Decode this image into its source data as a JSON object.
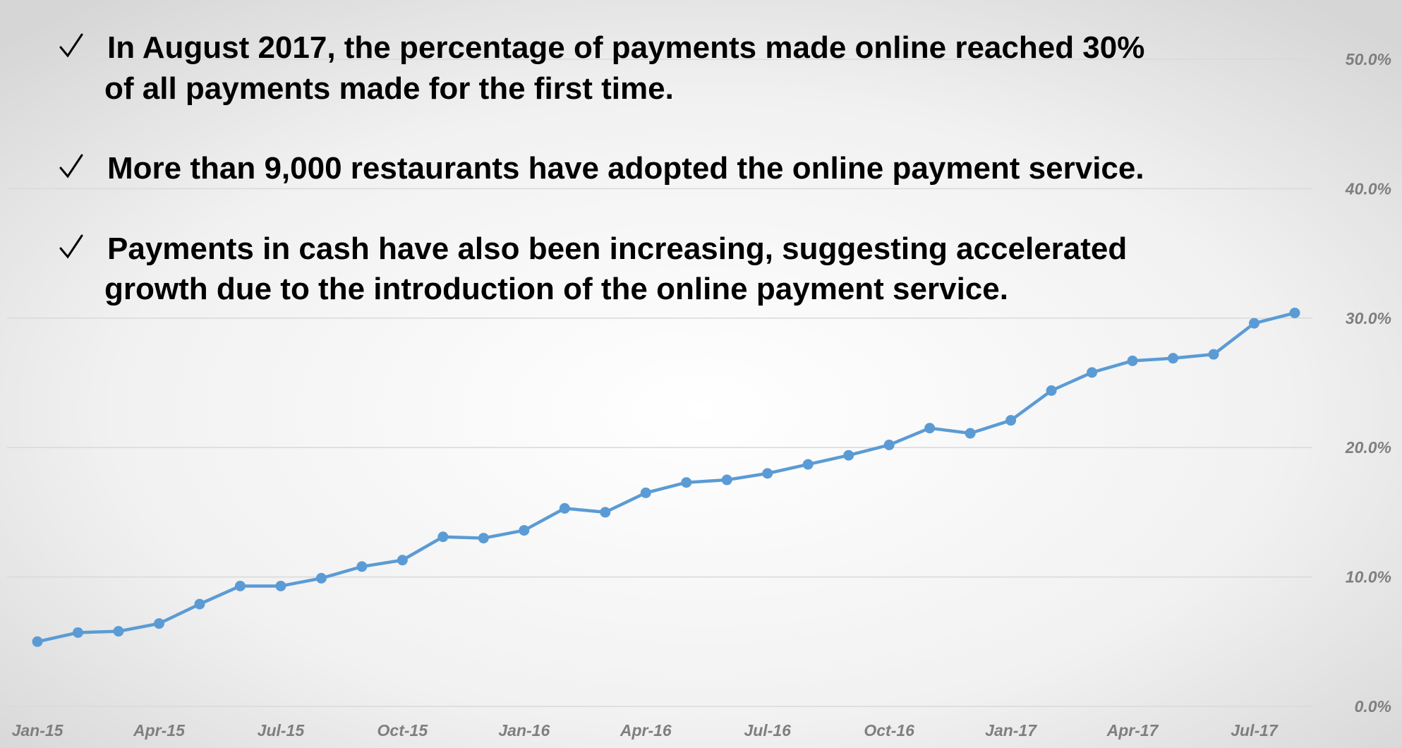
{
  "chart_data": {
    "type": "line",
    "annotations": [
      [
        "In August 2017, the percentage of payments made online reached 30%",
        "of all payments made for the first time."
      ],
      [
        "More than 9,000 restaurants have adopted the online payment service."
      ],
      [
        "Payments in cash have also been increasing, suggesting accelerated",
        "growth due to the introduction of the online payment service."
      ]
    ],
    "categories": [
      "Jan-15",
      null,
      null,
      "Apr-15",
      null,
      null,
      "Jul-15",
      null,
      null,
      "Oct-15",
      null,
      null,
      "Jan-16",
      null,
      null,
      "Apr-16",
      null,
      null,
      "Jul-16",
      null,
      null,
      "Oct-16",
      null,
      null,
      "Jan-17",
      null,
      null,
      "Apr-17",
      null,
      null,
      "Jul-17",
      null
    ],
    "series": [
      {
        "color": "#5b9bd5",
        "values": [
          5.0,
          5.7,
          5.8,
          6.4,
          7.9,
          9.3,
          9.3,
          9.9,
          10.8,
          11.3,
          13.1,
          13.0,
          13.6,
          15.3,
          15.0,
          16.5,
          17.3,
          17.5,
          18.0,
          18.7,
          19.4,
          20.2,
          21.5,
          21.1,
          22.1,
          24.4,
          25.8,
          26.7,
          26.9,
          27.2,
          29.6,
          30.4
        ]
      }
    ],
    "ylim": [
      0,
      50
    ],
    "yticks": [
      {
        "value": 0,
        "label": "0.0%"
      },
      {
        "value": 10,
        "label": "10.0%"
      },
      {
        "value": 20,
        "label": "20.0%"
      },
      {
        "value": 30,
        "label": "30.0%"
      },
      {
        "value": 40,
        "label": "40.0%"
      },
      {
        "value": 50,
        "label": "50.0%"
      }
    ],
    "grid": true
  }
}
